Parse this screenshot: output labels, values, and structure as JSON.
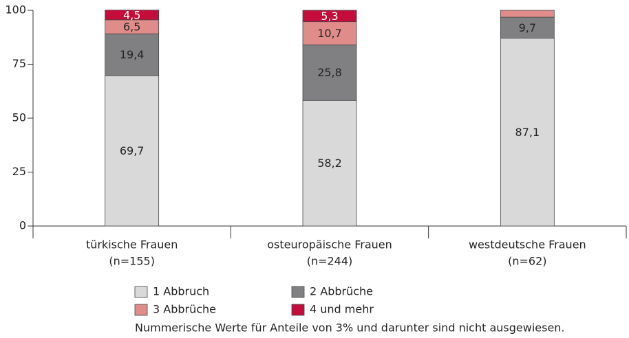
{
  "chart_data": {
    "type": "stacked_bar",
    "categories": [
      [
        "türkische Frauen",
        "(n=155)"
      ],
      [
        "osteuropäische Frauen",
        "(n=244)"
      ],
      [
        "westdeutsche Frauen",
        "(n=62)"
      ]
    ],
    "series": [
      {
        "name": "1 Abbruch",
        "color": "#d9d9d9",
        "values": [
          69.7,
          58.2,
          87.1
        ],
        "value_labels": [
          "69,7",
          "58,2",
          "87,1"
        ]
      },
      {
        "name": "2 Abbrüche",
        "color": "#808083",
        "values": [
          19.4,
          25.8,
          9.7
        ],
        "value_labels": [
          "19,4",
          "25,8",
          "9,7"
        ]
      },
      {
        "name": "3 Abbrüche",
        "color": "#e08c8a",
        "values": [
          6.5,
          10.7,
          3.2
        ],
        "value_labels": [
          "6,5",
          "10,7",
          null
        ]
      },
      {
        "name": "4 und mehr",
        "color": "#c40d3a",
        "values": [
          4.5,
          5.3,
          0
        ],
        "value_labels": [
          "4,5",
          "5,3",
          null
        ]
      }
    ],
    "ylim": [
      0,
      100
    ],
    "yticks": [
      0,
      25,
      50,
      75,
      100
    ],
    "note": "Nummerische Werte für Anteile von 3% und darunter sind nicht ausgewiesen."
  }
}
